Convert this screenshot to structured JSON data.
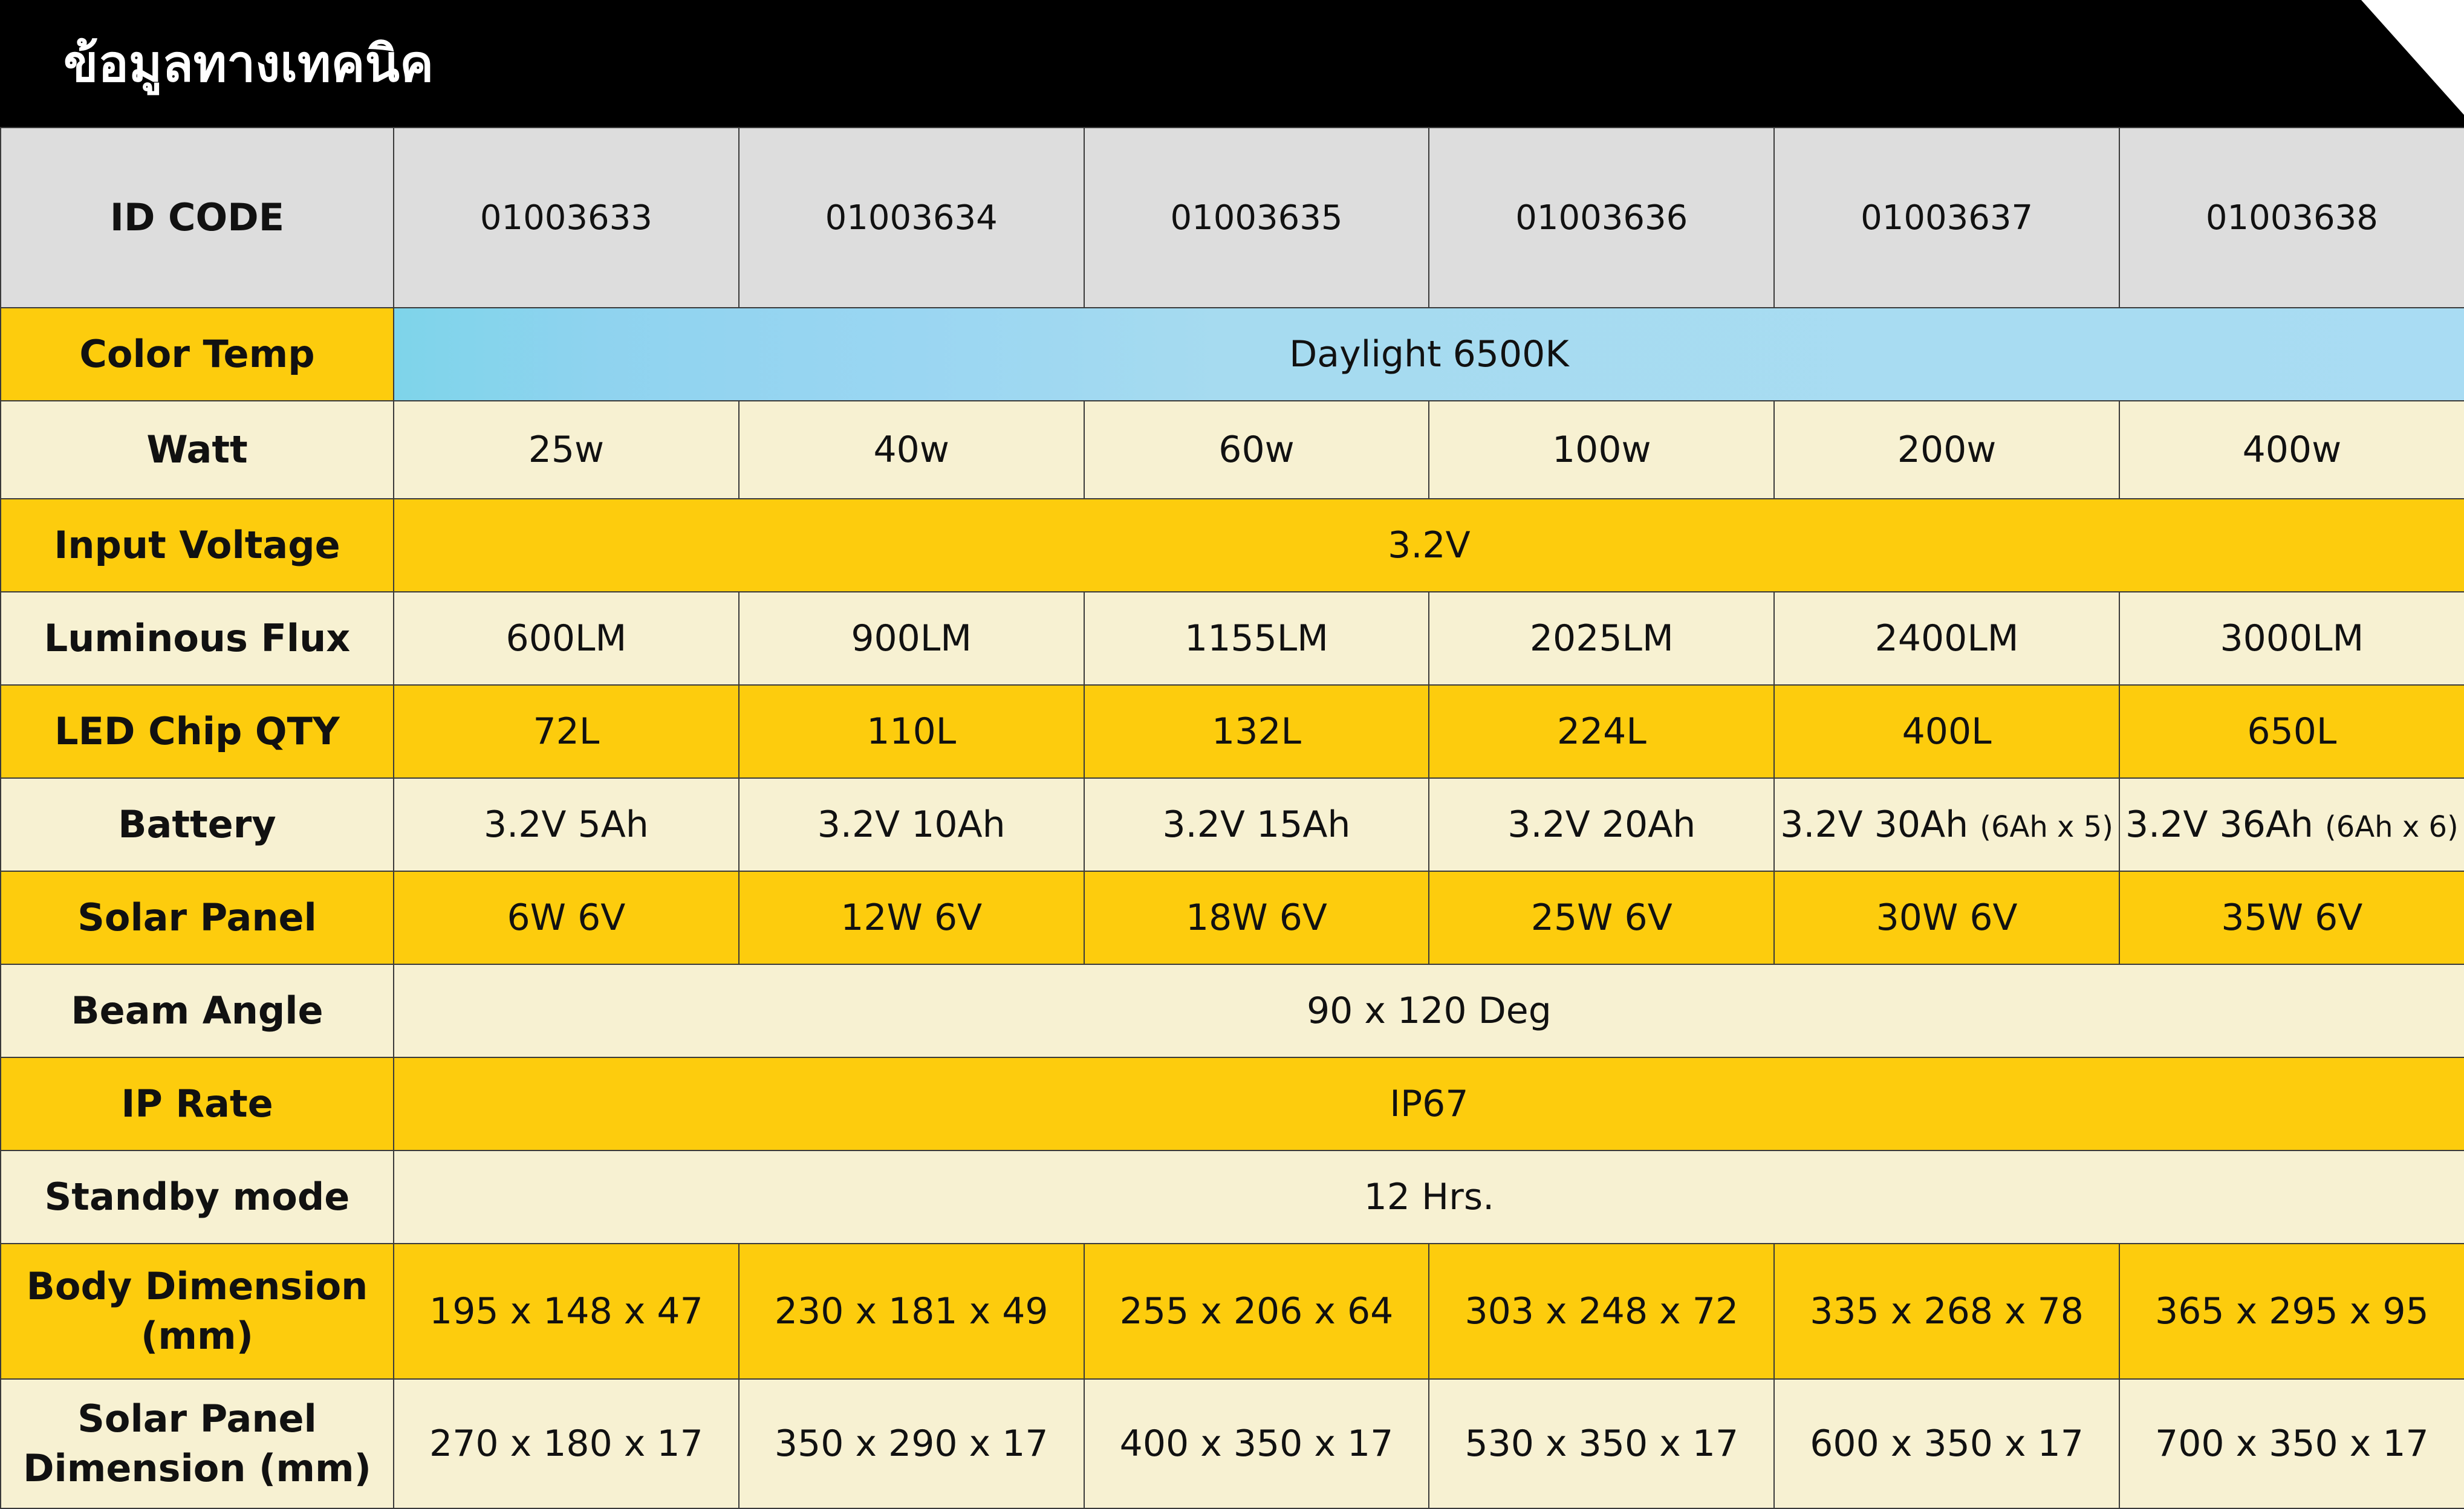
{
  "header": {
    "title": "ข้อมูลทางเทคนิค"
  },
  "colors": {
    "header_bg": "#000000",
    "gold": "#fdcc0d",
    "cream": "#f7f1d2",
    "id_row_bg": "#dddddd",
    "daylight_band": "#a9dcf3"
  },
  "table": {
    "id_code": {
      "label": "ID CODE",
      "values": [
        "01003633",
        "01003634",
        "01003635",
        "01003636",
        "01003637",
        "01003638"
      ]
    },
    "color_temp": {
      "label": "Color Temp",
      "value": "Daylight 6500K"
    },
    "watt": {
      "label": "Watt",
      "values": [
        "25w",
        "40w",
        "60w",
        "100w",
        "200w",
        "400w"
      ]
    },
    "input_voltage": {
      "label": "Input Voltage",
      "value": "3.2V"
    },
    "luminous_flux": {
      "label": "Luminous Flux",
      "values": [
        "600LM",
        "900LM",
        "1155LM",
        "2025LM",
        "2400LM",
        "3000LM"
      ]
    },
    "led_chip_qty": {
      "label": "LED Chip QTY",
      "values": [
        "72L",
        "110L",
        "132L",
        "224L",
        "400L",
        "650L"
      ]
    },
    "battery": {
      "label": "Battery",
      "values": [
        "3.2V 5Ah",
        "3.2V 10Ah",
        "3.2V 15Ah",
        "3.2V 20Ah",
        "3.2V 30Ah",
        "3.2V 36Ah"
      ],
      "notes": [
        "",
        "",
        "",
        "",
        "(6Ah x 5)",
        "(6Ah x 6)"
      ]
    },
    "solar_panel": {
      "label": "Solar Panel",
      "values": [
        "6W 6V",
        "12W 6V",
        "18W 6V",
        "25W 6V",
        "30W 6V",
        "35W 6V"
      ]
    },
    "beam_angle": {
      "label": "Beam Angle",
      "value": "90 x 120 Deg"
    },
    "ip_rate": {
      "label": "IP Rate",
      "value": "IP67"
    },
    "standby_mode": {
      "label": "Standby mode",
      "value": "12 Hrs."
    },
    "body_dimension": {
      "label_line1": "Body Dimension",
      "label_line2": "(mm)",
      "values": [
        "195 x 148 x 47",
        "230 x 181 x 49",
        "255 x 206 x 64",
        "303 x 248 x 72",
        "335 x 268 x 78",
        "365 x 295 x 95"
      ]
    },
    "solar_panel_dimension": {
      "label_line1": "Solar Panel",
      "label_line2": "Dimension (mm)",
      "values": [
        "270 x 180 x 17",
        "350 x 290 x 17",
        "400 x 350 x 17",
        "530 x 350 x 17",
        "600 x 350 x 17",
        "700 x 350 x 17"
      ]
    }
  }
}
